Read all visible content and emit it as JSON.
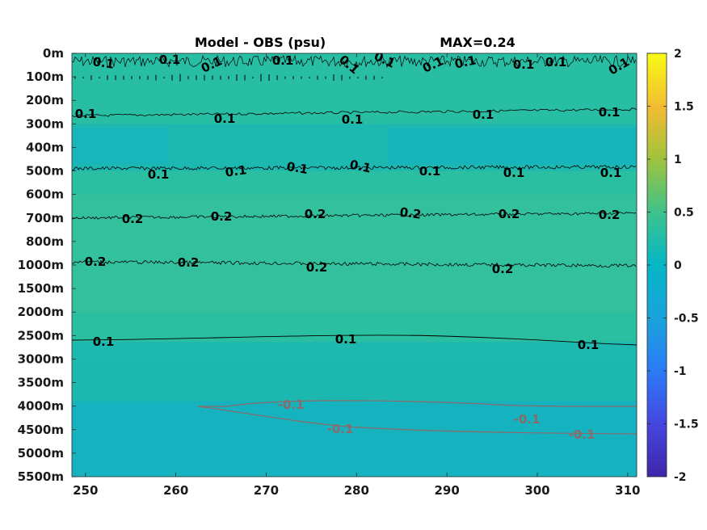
{
  "chart_data": {
    "type": "heatmap",
    "title": "Model - OBS (psu)",
    "subtitle": "MAX=0.24",
    "x_ticks": [
      250,
      260,
      270,
      280,
      290,
      300,
      310
    ],
    "xlim": [
      248.5,
      311
    ],
    "y_ticks": [
      "0m",
      "100m",
      "200m",
      "300m",
      "400m",
      "500m",
      "600m",
      "700m",
      "800m",
      "1000m",
      "1500m",
      "2000m",
      "2500m",
      "3000m",
      "3500m",
      "4000m",
      "4500m",
      "5000m",
      "5500m"
    ],
    "colorbar_ticks": [
      2,
      1.5,
      1,
      0.5,
      0,
      -0.5,
      -1,
      -1.5,
      -2
    ],
    "clim": [
      -2,
      2
    ],
    "colormap": "parula",
    "colors": {
      "positive_contour": "#000000",
      "negative_contour": "#8c6a6a",
      "field_base": "#1db8b0",
      "field_positive": "#2ec0a0",
      "field_negative": "#13b2c4"
    },
    "contours": [
      {
        "level": 0.1,
        "depth": "0m",
        "labels": [
          "0.1",
          "0.1",
          "0.1",
          "0.1",
          "0.1",
          "0.1",
          "0.1",
          "0.1",
          "0.1",
          "0.1",
          "0.1"
        ]
      },
      {
        "level": 0.1,
        "depth": "300m",
        "labels": [
          "0.1",
          "0.1",
          "0.1",
          "0.1",
          "0.1"
        ]
      },
      {
        "level": 0.1,
        "depth": "500m",
        "labels": [
          "0.1",
          "0.1",
          "0.1",
          "0.1",
          "0.1",
          "0.1",
          "0.1"
        ]
      },
      {
        "level": 0.2,
        "depth": "700m",
        "labels": [
          "0.2",
          "0.2",
          "0.2",
          "0.2",
          "0.2",
          "0.2"
        ]
      },
      {
        "level": 0.2,
        "depth": "1000m",
        "labels": [
          "0.2",
          "0.2",
          "0.2",
          "0.2"
        ]
      },
      {
        "level": 0.1,
        "depth": "2500m",
        "labels": [
          "0.1",
          "0.1",
          "0.1"
        ]
      },
      {
        "level": -0.1,
        "depth": "4000m-4500m",
        "labels": [
          "-0.1",
          "-0.1",
          "-0.1",
          "-0.1"
        ]
      }
    ],
    "grid": false,
    "legend": "none"
  }
}
